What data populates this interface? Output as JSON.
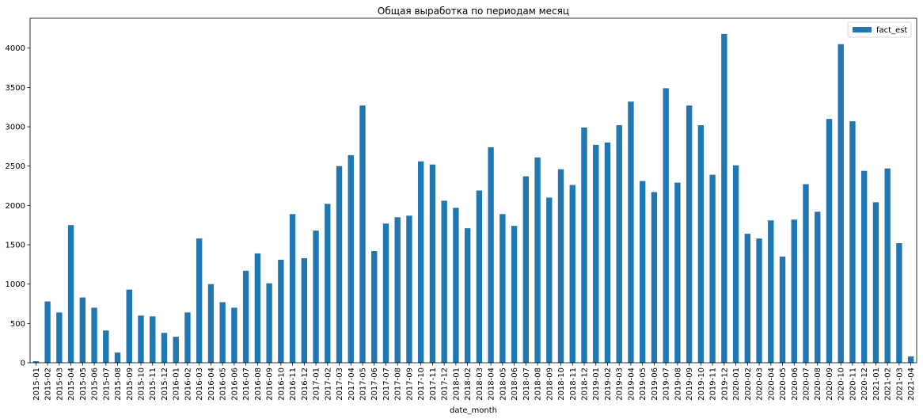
{
  "chart_data": {
    "type": "bar",
    "title": "Общая выработка по периодам месяц",
    "xlabel": "date_month",
    "ylabel": "",
    "ylim": [
      0,
      4380
    ],
    "yticks": [
      0,
      500,
      1000,
      1500,
      2000,
      2500,
      3000,
      3500,
      4000
    ],
    "grid": false,
    "legend_position": "top-right",
    "bar_color": "#1f77b4",
    "series": [
      {
        "name": "fact_est",
        "values": [
          20,
          780,
          640,
          1750,
          830,
          700,
          410,
          130,
          930,
          600,
          590,
          380,
          330,
          640,
          1580,
          1000,
          770,
          700,
          1170,
          1390,
          1010,
          1310,
          1890,
          1330,
          1680,
          2020,
          2500,
          2640,
          3270,
          1420,
          1770,
          1850,
          1870,
          2560,
          2520,
          2060,
          1970,
          1710,
          2190,
          2740,
          1890,
          1740,
          2370,
          2610,
          2100,
          2460,
          2260,
          2990,
          2770,
          2800,
          3020,
          3320,
          2310,
          2170,
          3490,
          2290,
          3270,
          3020,
          2390,
          4180,
          2510,
          1640,
          1580,
          1810,
          1350,
          1820,
          2270,
          1920,
          3100,
          4050,
          3070,
          2440,
          2040,
          2470,
          1520,
          80
        ]
      }
    ],
    "categories": [
      "2015-01",
      "2015-02",
      "2015-03",
      "2015-04",
      "2015-05",
      "2015-06",
      "2015-07",
      "2015-08",
      "2015-09",
      "2015-10",
      "2015-11",
      "2015-12",
      "2016-01",
      "2016-02",
      "2016-03",
      "2016-04",
      "2016-05",
      "2016-06",
      "2016-07",
      "2016-08",
      "2016-09",
      "2016-10",
      "2016-11",
      "2016-12",
      "2017-01",
      "2017-02",
      "2017-03",
      "2017-04",
      "2017-05",
      "2017-06",
      "2017-07",
      "2017-08",
      "2017-09",
      "2017-10",
      "2017-11",
      "2017-12",
      "2018-01",
      "2018-02",
      "2018-03",
      "2018-04",
      "2018-05",
      "2018-06",
      "2018-07",
      "2018-08",
      "2018-09",
      "2018-10",
      "2018-11",
      "2018-12",
      "2019-01",
      "2019-02",
      "2019-03",
      "2019-04",
      "2019-05",
      "2019-06",
      "2019-07",
      "2019-08",
      "2019-09",
      "2019-10",
      "2019-11",
      "2019-12",
      "2020-01",
      "2020-02",
      "2020-03",
      "2020-04",
      "2020-05",
      "2020-06",
      "2020-07",
      "2020-08",
      "2020-09",
      "2020-10",
      "2020-11",
      "2020-12",
      "2021-01",
      "2021-02",
      "2021-03",
      "2021-04"
    ]
  }
}
